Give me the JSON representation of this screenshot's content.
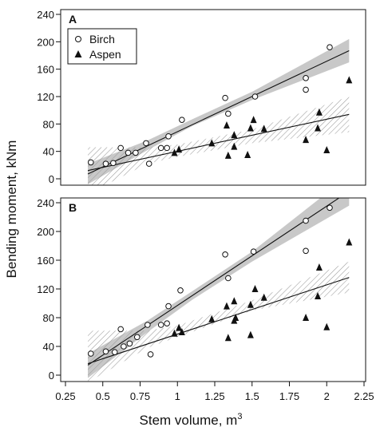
{
  "figure": {
    "ylabel": "Bending moment, kNm",
    "xlabel": "Stem volume, m",
    "xlabel_superscript": "3"
  },
  "colors": {
    "birch_band": "#c8c8c8",
    "aspen_hatch": "#9a9a9a",
    "marker": "#111111"
  },
  "chart_data": [
    {
      "type": "scatter",
      "panel_label": "A",
      "xlim": [
        0.25,
        2.25
      ],
      "ylim": [
        0,
        240
      ],
      "xticks": [
        "0.25",
        "0.5",
        "0.75",
        "1",
        "1.25",
        "1.5",
        "1.75",
        "2",
        "2.25"
      ],
      "yticks": [
        "0",
        "40",
        "80",
        "120",
        "160",
        "200",
        "240"
      ],
      "legend": {
        "placement": "top-left",
        "entries": [
          "Birch",
          "Aspen"
        ]
      },
      "series": [
        {
          "name": "Birch",
          "marker": "open-circle",
          "x": [
            0.42,
            0.52,
            0.57,
            0.62,
            0.67,
            0.72,
            0.79,
            0.81,
            0.89,
            0.93,
            0.94,
            1.03,
            1.32,
            1.34,
            1.52,
            1.86,
            1.86,
            2.02
          ],
          "y": [
            24,
            22,
            23,
            45,
            38,
            38,
            52,
            22,
            45,
            45,
            62,
            86,
            118,
            95,
            120,
            147,
            130,
            192
          ],
          "fit": {
            "x": [
              0.4,
              2.15
            ],
            "y": [
              7,
              187
            ]
          },
          "ci": {
            "x": [
              0.4,
              0.8,
              1.1,
              1.5,
              2.15
            ],
            "lower": [
              -8,
              42,
              77,
              115,
              170
            ],
            "upper": [
              22,
              56,
              87,
              127,
              204
            ]
          }
        },
        {
          "name": "Aspen",
          "marker": "filled-triangle",
          "x": [
            0.98,
            1.01,
            1.23,
            1.33,
            1.34,
            1.38,
            1.38,
            1.47,
            1.49,
            1.51,
            1.58,
            1.86,
            1.94,
            1.95,
            2.0,
            2.15
          ],
          "y": [
            38,
            43,
            52,
            78,
            34,
            64,
            47,
            35,
            74,
            86,
            73,
            57,
            74,
            97,
            42,
            144
          ],
          "fit": {
            "x": [
              0.4,
              2.15
            ],
            "y": [
              12,
              94
            ]
          },
          "ci": {
            "x": [
              0.4,
              0.8,
              1.0,
              1.5,
              2.15
            ],
            "lower": [
              -22,
              22,
              32,
              52,
              68
            ],
            "upper": [
              46,
              46,
              50,
              72,
              120
            ]
          }
        }
      ]
    },
    {
      "type": "scatter",
      "panel_label": "B",
      "xlim": [
        0.25,
        2.25
      ],
      "ylim": [
        0,
        240
      ],
      "xticks": [
        "0.25",
        "0.5",
        "0.75",
        "1",
        "1.25",
        "1.5",
        "1.75",
        "2",
        "2.25"
      ],
      "yticks": [
        "0",
        "40",
        "80",
        "120",
        "160",
        "200",
        "240"
      ],
      "series": [
        {
          "name": "Birch",
          "marker": "open-circle",
          "x": [
            0.42,
            0.52,
            0.58,
            0.62,
            0.64,
            0.68,
            0.73,
            0.8,
            0.82,
            0.89,
            0.93,
            0.94,
            1.02,
            1.32,
            1.34,
            1.51,
            1.86,
            1.86,
            2.02
          ],
          "y": [
            30,
            33,
            32,
            64,
            40,
            44,
            53,
            70,
            29,
            70,
            72,
            96,
            118,
            168,
            135,
            172,
            215,
            173,
            233
          ],
          "fit": {
            "x": [
              0.4,
              2.15
            ],
            "y": [
              14,
              256
            ]
          },
          "ci": {
            "x": [
              0.4,
              0.8,
              1.1,
              1.5,
              2.15
            ],
            "lower": [
              -4,
              60,
              105,
              158,
              236
            ],
            "upper": [
              30,
              76,
              117,
              172,
              278
            ]
          }
        },
        {
          "name": "Aspen",
          "marker": "filled-triangle",
          "x": [
            0.98,
            1.01,
            1.03,
            1.23,
            1.33,
            1.34,
            1.38,
            1.38,
            1.39,
            1.49,
            1.49,
            1.52,
            1.58,
            1.86,
            1.94,
            1.95,
            2.0,
            2.15
          ],
          "y": [
            58,
            66,
            60,
            78,
            96,
            52,
            103,
            76,
            80,
            56,
            98,
            120,
            108,
            80,
            110,
            150,
            67,
            185
          ],
          "fit": {
            "x": [
              0.4,
              2.15
            ],
            "y": [
              16,
              136
            ]
          },
          "ci": {
            "x": [
              0.4,
              0.8,
              1.0,
              1.5,
              2.15
            ],
            "lower": [
              -10,
              38,
              53,
              90,
              115
            ],
            "upper": [
              62,
              62,
              69,
              104,
              158
            ]
          }
        }
      ]
    }
  ]
}
